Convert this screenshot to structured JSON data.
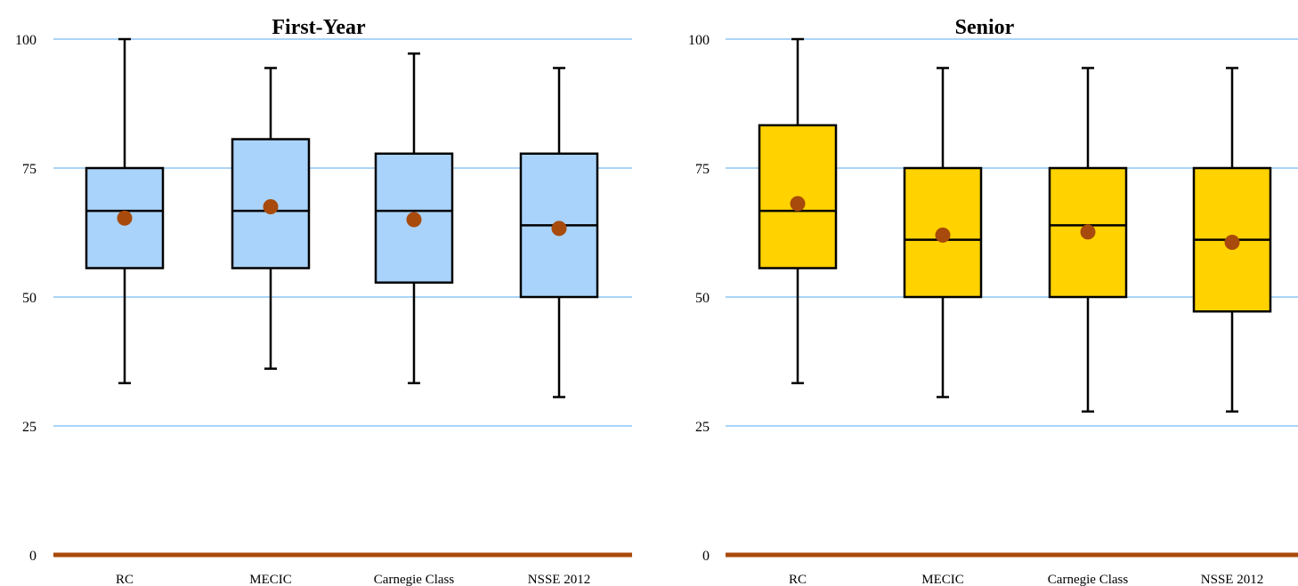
{
  "chart_data": [
    {
      "type": "box",
      "title": "First-Year",
      "ylim": [
        0,
        100
      ],
      "yticks": [
        0,
        25,
        50,
        75,
        100
      ],
      "grid": true,
      "gridline_color": "#aad4f8",
      "baseline_color": "#a84a0b",
      "box_color": "#a9d3fb",
      "mean_marker_color": "#a84a0b",
      "categories": [
        "RC",
        "MECIC",
        "Carnegie Class",
        "NSSE 2012"
      ],
      "boxes": [
        {
          "min": 33.3,
          "q1": 55.6,
          "median": 66.7,
          "q3": 75.0,
          "max": 100.0,
          "mean": 65.3
        },
        {
          "min": 36.1,
          "q1": 55.6,
          "median": 66.7,
          "q3": 80.6,
          "max": 94.4,
          "mean": 67.5
        },
        {
          "min": 33.3,
          "q1": 52.8,
          "median": 66.7,
          "q3": 77.8,
          "max": 97.2,
          "mean": 65.0
        },
        {
          "min": 30.6,
          "q1": 50.0,
          "median": 63.9,
          "q3": 77.8,
          "max": 94.4,
          "mean": 63.3
        }
      ]
    },
    {
      "type": "box",
      "title": "Senior",
      "ylim": [
        0,
        100
      ],
      "yticks": [
        0,
        25,
        50,
        75,
        100
      ],
      "grid": true,
      "gridline_color": "#aad4f8",
      "baseline_color": "#a84a0b",
      "box_color": "#ffd200",
      "mean_marker_color": "#a84a0b",
      "categories": [
        "RC",
        "MECIC",
        "Carnegie Class",
        "NSSE 2012"
      ],
      "boxes": [
        {
          "min": 33.3,
          "q1": 55.6,
          "median": 66.7,
          "q3": 83.3,
          "max": 100.0,
          "mean": 68.1
        },
        {
          "min": 30.6,
          "q1": 50.0,
          "median": 61.1,
          "q3": 75.0,
          "max": 94.4,
          "mean": 62.0
        },
        {
          "min": 27.8,
          "q1": 50.0,
          "median": 63.9,
          "q3": 75.0,
          "max": 94.4,
          "mean": 62.6
        },
        {
          "min": 27.8,
          "q1": 47.2,
          "median": 61.1,
          "q3": 75.0,
          "max": 94.4,
          "mean": 60.6
        }
      ]
    }
  ]
}
